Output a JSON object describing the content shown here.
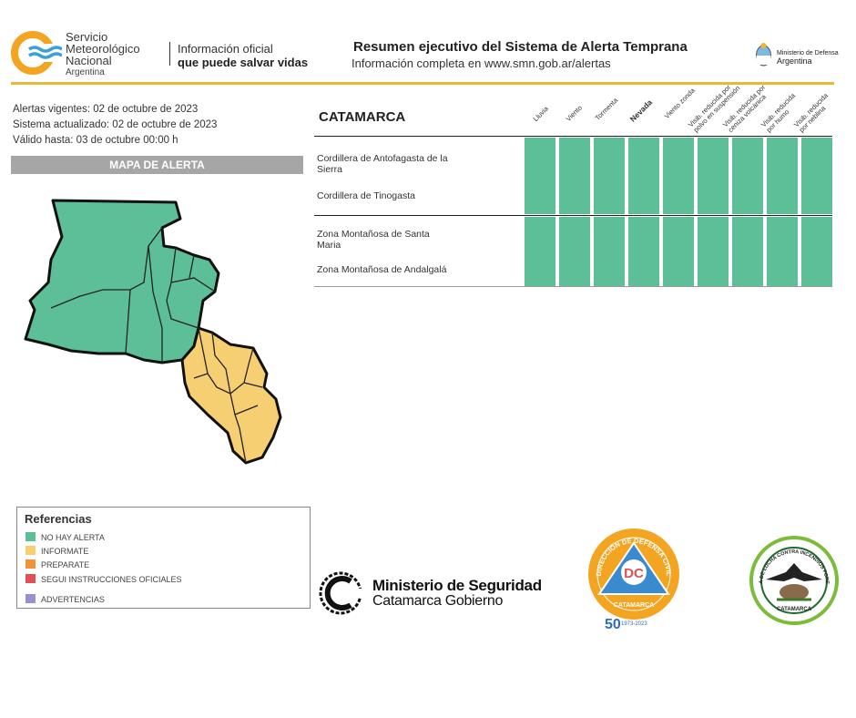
{
  "header": {
    "org_name": [
      "Servicio",
      "Meteorológico",
      "Nacional"
    ],
    "org_country": "Argentina",
    "tagline_line1": "Información oficial",
    "tagline_line2": "que puede salvar vidas",
    "title": "Resumen ejecutivo del Sistema de Alerta Temprana",
    "subtitle": "Información completa en www.smn.gob.ar/alertas",
    "ministry_line1": "Ministerio de Defensa",
    "ministry_line2": "Argentina"
  },
  "info": {
    "alertas_vigentes": "Alertas vigentes: 02 de octubre de 2023",
    "sistema_actualizado": "Sistema actualizado: 02 de octubre de 2023",
    "valido_hasta": "Válido hasta: 03 de octubre 00:00 h"
  },
  "map": {
    "title": "MAPA DE ALERTA",
    "colors": {
      "no_alert": "#5cbf97",
      "informate": "#f7cf73"
    }
  },
  "table": {
    "province": "CATAMARCA",
    "columns": [
      "Lluvia",
      "Viento",
      "Tormenta",
      "Nevada",
      "Viento zonda",
      [
        "Visib. reducida por",
        "polvo en suspensión"
      ],
      [
        "Visib. reducida por",
        "ceniza volcánica"
      ],
      [
        "Visib. reducida",
        "por humo"
      ],
      [
        "Visib. reducida",
        "por neblina"
      ]
    ],
    "groups": [
      {
        "zones": [
          "Cordillera de Antofagasta de la Sierra",
          "Cordillera de Tinogasta"
        ],
        "levels": [
          "no_alert",
          "no_alert",
          "no_alert",
          "no_alert",
          "no_alert",
          "no_alert",
          "no_alert",
          "no_alert",
          "no_alert"
        ]
      },
      {
        "zones": [
          "Zona Montañosa de Santa Maria",
          "Zona Montañosa de Andalgalá"
        ],
        "levels": [
          "no_alert",
          "no_alert",
          "no_alert",
          "no_alert",
          "no_alert",
          "no_alert",
          "no_alert",
          "no_alert",
          "no_alert"
        ]
      }
    ]
  },
  "references": {
    "title": "Referencias",
    "items": [
      {
        "label": "NO HAY ALERTA",
        "color": "#5cbf97"
      },
      {
        "label": "INFORMATE",
        "color": "#f7cf73"
      },
      {
        "label": "PREPARATE",
        "color": "#f0933a"
      },
      {
        "label": "SEGUI INSTRUCCIONES OFICIALES",
        "color": "#e05055"
      },
      {
        "label": "ADVERTENCIAS",
        "color": "#9b8fd4"
      }
    ]
  },
  "footer_logos": {
    "ministerio_line1": "Ministerio de Seguridad",
    "ministerio_line2": "Catamarca Gobierno",
    "defensa_civil": "DIRECCIÓN DE DEFENSA CIVIL",
    "defensa_civil_initials": "DC",
    "defensa_civil_place": "CATAMARCA",
    "defensa_civil_years": "1973-2023",
    "defensa_civil_anniv": "50",
    "brigada": "BRIGADA DE LUCHA CONTRA INCENDIOS FORESTALES",
    "brigada_place": "CATAMARCA"
  }
}
